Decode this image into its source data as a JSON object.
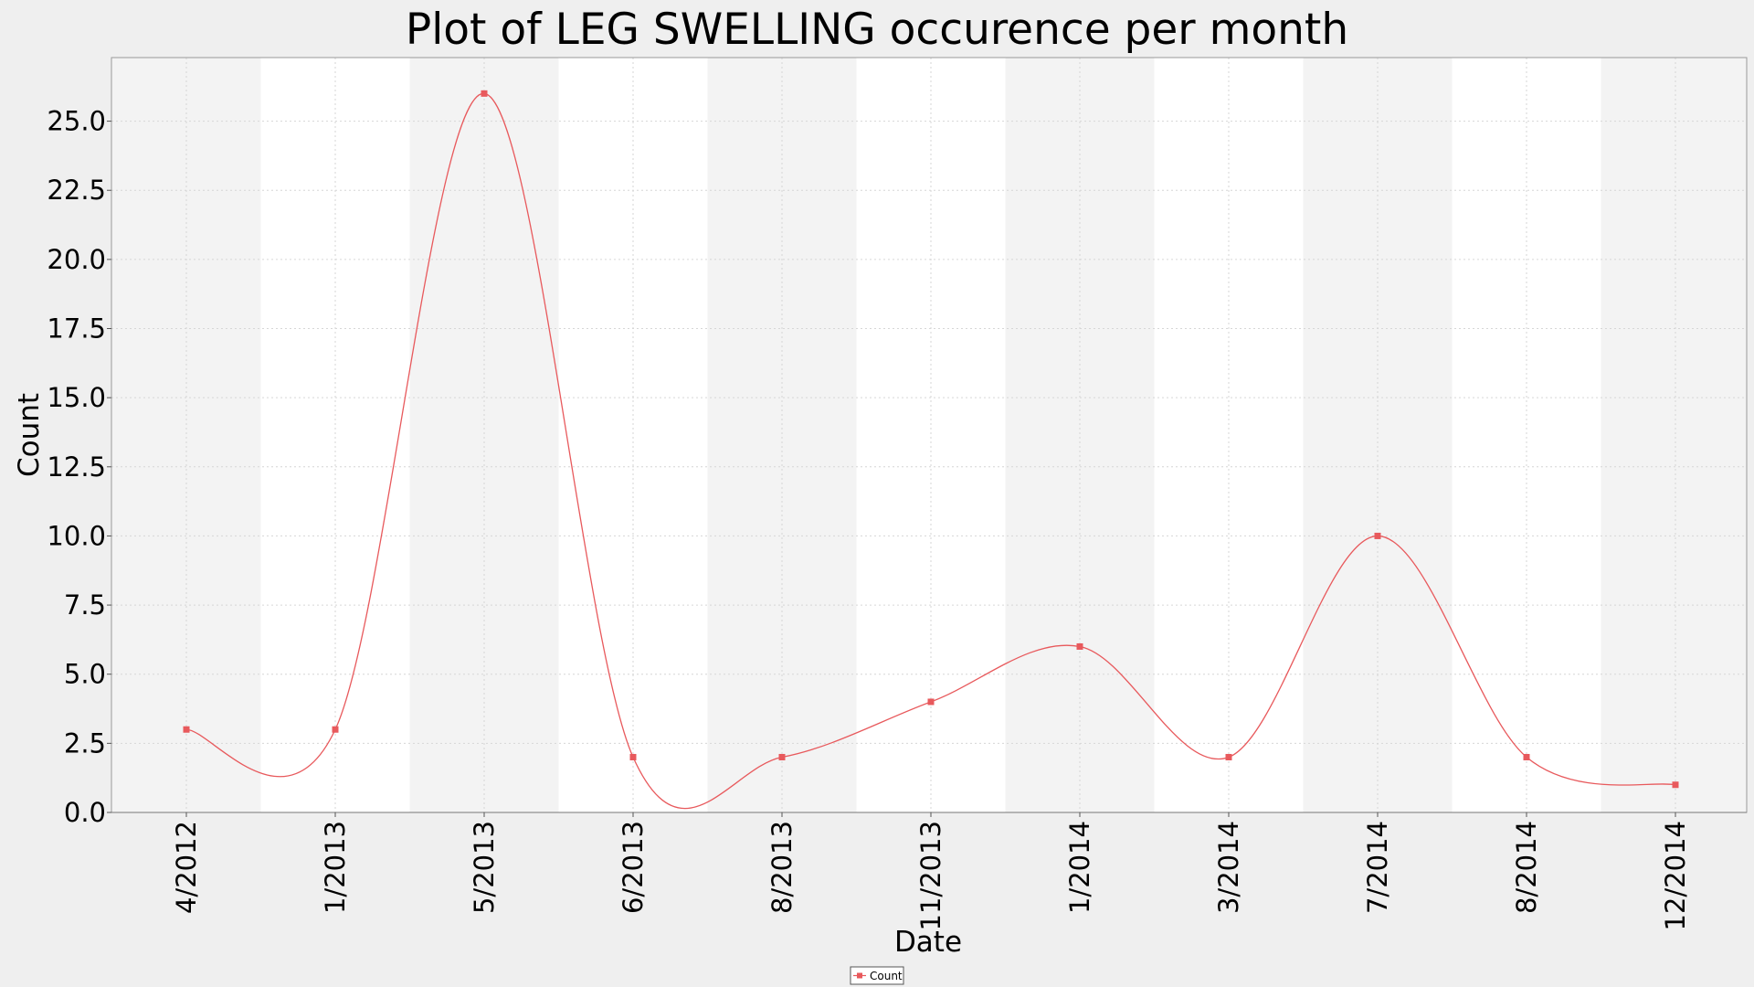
{
  "chart_data": {
    "type": "line",
    "title": "Plot of LEG SWELLING occurence per month",
    "xlabel": "Date",
    "ylabel": "Count",
    "ylim": [
      0,
      27.3
    ],
    "yticks": [
      "0.0",
      "2.5",
      "5.0",
      "7.5",
      "10.0",
      "12.5",
      "15.0",
      "17.5",
      "20.0",
      "22.5",
      "25.0"
    ],
    "ytick_values": [
      0,
      2.5,
      5,
      7.5,
      10,
      12.5,
      15,
      17.5,
      20,
      22.5,
      25
    ],
    "categories": [
      "4/2012",
      "1/2013",
      "5/2013",
      "6/2013",
      "8/2013",
      "11/2013",
      "1/2014",
      "3/2014",
      "7/2014",
      "8/2014",
      "12/2014"
    ],
    "series": [
      {
        "name": "Count",
        "values": [
          3,
          3,
          26,
          2,
          2,
          4,
          6,
          2,
          10,
          2,
          1
        ]
      }
    ],
    "legend": {
      "position": "bottom-center",
      "label": "Count"
    },
    "line_color": "#e8595c",
    "band_colors": [
      "#f3f3f3",
      "#ffffff"
    ],
    "grid": true
  }
}
